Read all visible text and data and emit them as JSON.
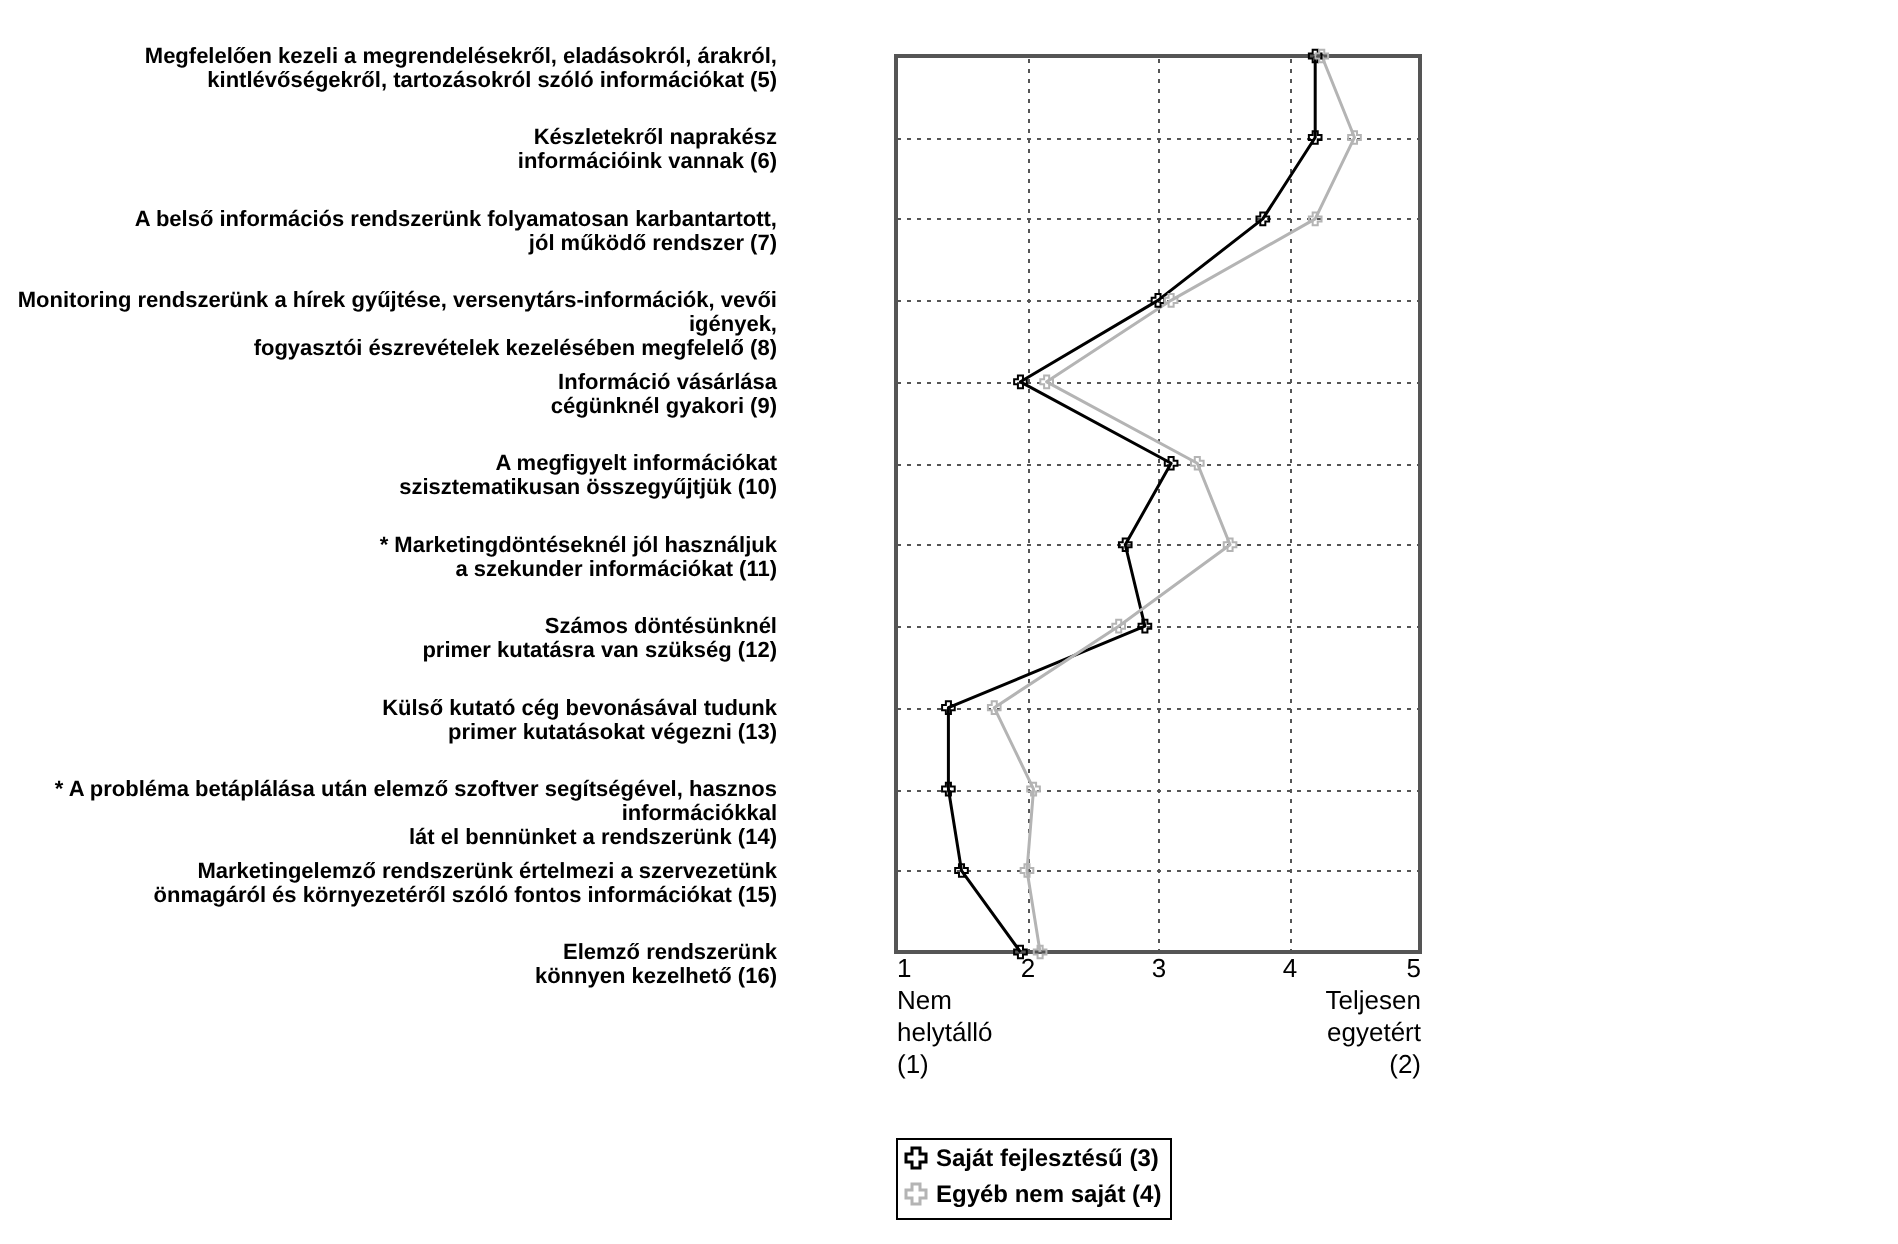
{
  "chart_data": {
    "type": "line",
    "orientation": "horizontal",
    "categories": [
      "Megfelelően kezeli a megrendelésekről, eladásokról, árakról,\nkintlévőségekről, tartozásokról szóló információkat (5)",
      "Készletekről naprakész\ninformációink vannak (6)",
      "A belső információs rendszerünk folyamatosan karbantartott,\njól működő rendszer (7)",
      "Monitoring rendszerünk a hírek gyűjtése, versenytárs-információk, vevői\nigények,\nfogyasztói észrevételek kezelésében megfelelő (8)",
      "Információ vásárlása\ncégünknél gyakori (9)",
      "A megfigyelt információkat\nszisztematikusan összegyűjtjük (10)",
      "* Marketingdöntéseknél jól használjuk\na szekunder információkat (11)",
      "Számos döntésünknél\nprimer kutatásra van szükség (12)",
      "Külső kutató cég bevonásával tudunk\nprimer kutatásokat végezni (13)",
      "* A probléma betáplálása után elemző szoftver segítségével, hasznos\ninformációkkal\nlát el bennünket a rendszerünk (14)",
      "Marketingelemző rendszerünk értelmezi a szervezetünk\nönmagáról és környezetéről szóló fontos információkat (15)",
      "Elemző rendszerünk\nkönnyen kezelhető (16)"
    ],
    "series": [
      {
        "name": "Saját fejlesztésű (3)",
        "color": "#000000",
        "values": [
          4.2,
          4.2,
          3.8,
          3.0,
          1.95,
          3.1,
          2.75,
          2.9,
          1.4,
          1.4,
          1.5,
          1.95
        ]
      },
      {
        "name": "Egyéb nem saját (4)",
        "color": "#b4b4b4",
        "values": [
          4.25,
          4.5,
          4.2,
          3.1,
          2.15,
          3.3,
          3.55,
          2.7,
          1.75,
          2.05,
          2.0,
          2.1
        ]
      }
    ],
    "xlim": [
      1,
      5
    ],
    "xticks": [
      {
        "value": 1,
        "label": "1\nNem\nhelytálló\n(1)"
      },
      2,
      3,
      4,
      {
        "value": 5,
        "label": "5\nTeljesen\negyetért\n(2)"
      }
    ],
    "grid": true,
    "line_style": "solid",
    "marker": "cross",
    "legend": "bottom"
  }
}
